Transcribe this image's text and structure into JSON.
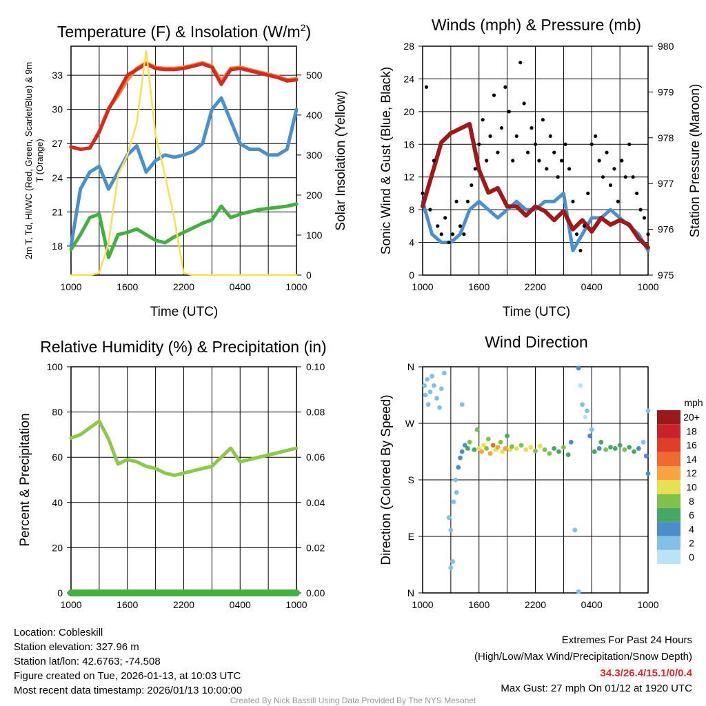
{
  "chart_data": [
    {
      "type": "line",
      "title": "Temperature (F) & Insolation (W/m²)",
      "xlabel": "Time (UTC)",
      "ylabel": "2m T, Td, HI/WC (Red, Green, Scarlet/Blue) & 9m T (Orange)",
      "ylabel_line1": "2m T, Td, HI/WC (Red, Green, Scarlet/Blue)",
      "ylabel_line2": "& 9m T (Orange)",
      "ylabel_right": "Solar Insolation (Yellow)",
      "x_tick_labels": [
        "1000",
        "1600",
        "2200",
        "0400",
        "1000"
      ],
      "y_tick_labels": [
        "18",
        "21",
        "24",
        "27",
        "30",
        "33"
      ],
      "y_right_tick_labels": [
        "0",
        "100",
        "200",
        "300",
        "400",
        "500"
      ],
      "ylim": [
        15.45,
        35.55
      ],
      "ylim_right": [
        0,
        572
      ],
      "x_hours": [
        0,
        1,
        2,
        3,
        4,
        5,
        6,
        7,
        8,
        9,
        10,
        11,
        12,
        13,
        14,
        15,
        16,
        17,
        18,
        19,
        20,
        21,
        22,
        23,
        24
      ],
      "series": [
        {
          "name": "9m T",
          "color": "#f08a30",
          "axis": "left",
          "values": [
            26.7,
            26.5,
            26.6,
            28.1,
            30.1,
            31.2,
            32.6,
            33.6,
            34.1,
            33.7,
            33.6,
            33.6,
            33.7,
            33.9,
            34.1,
            33.8,
            32.5,
            33.6,
            33.7,
            33.5,
            33.3,
            33.1,
            32.9,
            32.6,
            32.7
          ]
        },
        {
          "name": "2m T",
          "color": "#d42a24",
          "axis": "left",
          "values": [
            26.7,
            26.5,
            26.6,
            28,
            30,
            31.5,
            33,
            33.5,
            34,
            33.6,
            33.5,
            33.5,
            33.6,
            33.8,
            34,
            33.7,
            32.2,
            33.5,
            33.6,
            33.4,
            33.2,
            33,
            32.8,
            32.5,
            32.6
          ]
        },
        {
          "name": "Td",
          "color": "#44b040",
          "axis": "left",
          "values": [
            17.7,
            19,
            20.5,
            20.8,
            17,
            19,
            19.2,
            19.5,
            19,
            18.5,
            18.3,
            18.8,
            19.2,
            19.6,
            20,
            20.3,
            21.5,
            20.5,
            20.8,
            21,
            21.2,
            21.3,
            21.4,
            21.5,
            21.7
          ]
        },
        {
          "name": "WC",
          "color": "#4a90cc",
          "axis": "left",
          "values": [
            18,
            23,
            24.5,
            25,
            23,
            24.5,
            26,
            26.8,
            24.5,
            25.5,
            26,
            25.8,
            26,
            26.3,
            27,
            30,
            31,
            29,
            27,
            26.5,
            26.5,
            26,
            26,
            26.5,
            30
          ]
        },
        {
          "name": "Solar",
          "color": "#f8e050",
          "axis": "right",
          "values": [
            0,
            0,
            0,
            5,
            80,
            250,
            300,
            380,
            560,
            350,
            250,
            140,
            5,
            0,
            0,
            0,
            0,
            0,
            0,
            0,
            0,
            0,
            0,
            0,
            0
          ]
        }
      ]
    },
    {
      "type": "line",
      "title": "Winds (mph) & Pressure (mb)",
      "xlabel": "Time (UTC)",
      "ylabel": "Sonic Wind & Gust (Blue, Black)",
      "ylabel_right": "Station Pressure (Maroon)",
      "x_tick_labels": [
        "1000",
        "1600",
        "2200",
        "0400",
        "1000"
      ],
      "y_tick_labels": [
        "0",
        "4",
        "8",
        "12",
        "16",
        "20",
        "24",
        "28"
      ],
      "y_right_tick_labels": [
        "975",
        "976",
        "977",
        "978",
        "979",
        "980"
      ],
      "ylim": [
        0,
        28
      ],
      "ylim_right": [
        975,
        980
      ],
      "x_hours": [
        0,
        1,
        2,
        3,
        4,
        5,
        6,
        7,
        8,
        9,
        10,
        11,
        12,
        13,
        14,
        15,
        16,
        17,
        18,
        19,
        20,
        21,
        22,
        23,
        24
      ],
      "series": [
        {
          "name": "Sonic Wind",
          "color": "#4a90cc",
          "axis": "left",
          "values": [
            9,
            5,
            4,
            4,
            5,
            8,
            9,
            8,
            7,
            8,
            9,
            8,
            8,
            9,
            9,
            10,
            3,
            5,
            7,
            7,
            8,
            7,
            6,
            5,
            3
          ]
        },
        {
          "name": "Pressure",
          "color": "#a01818",
          "axis": "right",
          "values": [
            976.5,
            977.2,
            977.9,
            978.1,
            978.2,
            978.3,
            977.3,
            976.8,
            976.9,
            976.5,
            976.5,
            976.3,
            976.5,
            976.4,
            976.2,
            976.4,
            976.0,
            976.2,
            975.95,
            976.25,
            976.1,
            976.2,
            976.1,
            975.8,
            975.6
          ]
        }
      ],
      "gust": {
        "name": "Gust",
        "color": "#000000",
        "step_hours": 0.4,
        "values": [
          10,
          23,
          8,
          14,
          6,
          5,
          7,
          4,
          5,
          9,
          6,
          5,
          9,
          11,
          13,
          16,
          19,
          14,
          17,
          22,
          15,
          18,
          23,
          20,
          14,
          17,
          26,
          21,
          15,
          18,
          16,
          14,
          19,
          13,
          17,
          15,
          12,
          14,
          16,
          13,
          9,
          5,
          3,
          6,
          10,
          16,
          17,
          14,
          12,
          15,
          11,
          13,
          9,
          14,
          12,
          16,
          12,
          10,
          8,
          7,
          5
        ]
      }
    },
    {
      "type": "line",
      "title": "Relative Humidity (%) & Precipitation (in)",
      "ylabel": "Percent & Precipitation",
      "x_tick_labels": [
        "1000",
        "1600",
        "2200",
        "0400",
        "1000"
      ],
      "y_tick_labels": [
        "0",
        "20",
        "40",
        "60",
        "80",
        "100"
      ],
      "y_right_tick_labels": [
        "0.00",
        "0.02",
        "0.04",
        "0.06",
        "0.08",
        "0.10"
      ],
      "ylim": [
        0,
        100
      ],
      "ylim_right": [
        0,
        0.1
      ],
      "x_hours": [
        0,
        1,
        2,
        3,
        4,
        5,
        6,
        7,
        8,
        9,
        10,
        11,
        12,
        13,
        14,
        15,
        16,
        17,
        18,
        19,
        20,
        21,
        22,
        23,
        24
      ],
      "series": [
        {
          "name": "RH",
          "color": "#8cc84a",
          "axis": "left",
          "values": [
            68.5,
            70,
            73,
            76,
            68,
            57,
            59,
            58,
            56,
            55,
            53,
            52,
            53,
            54,
            55,
            56,
            60,
            64,
            58,
            59,
            60,
            61,
            62,
            63,
            64
          ]
        },
        {
          "name": "Precipitation",
          "color": "#44b040",
          "axis": "right",
          "values": [
            0,
            0,
            0,
            0,
            0,
            0,
            0,
            0,
            0,
            0,
            0,
            0,
            0,
            0,
            0,
            0,
            0,
            0,
            0,
            0,
            0,
            0,
            0,
            0,
            0
          ]
        }
      ]
    },
    {
      "type": "scatter",
      "title": "Wind Direction",
      "ylabel": "Direction (Colored By Speed)",
      "x_tick_labels": [
        "1000",
        "1600",
        "2200",
        "0400",
        "1000"
      ],
      "y_tick_labels": [
        "N",
        "E",
        "S",
        "W",
        "N"
      ],
      "ylim": [
        0,
        360
      ],
      "legend": {
        "title": "mph",
        "labels": [
          "0",
          "2",
          "4",
          "6",
          "8",
          "10",
          "12",
          "14",
          "16",
          "18",
          "20+"
        ],
        "colors": [
          "#b8e4f6",
          "#84bfe6",
          "#4a8ccc",
          "#46a866",
          "#7ec24a",
          "#e6e052",
          "#f6a442",
          "#f06a30",
          "#e03e2a",
          "#c8222a",
          "#9a1a1a"
        ],
        "placement": "right"
      },
      "points": [
        [
          0.2,
          330,
          3
        ],
        [
          0.3,
          315,
          3
        ],
        [
          0.5,
          340,
          2
        ],
        [
          0.6,
          300,
          3
        ],
        [
          0.8,
          320,
          2
        ],
        [
          1,
          345,
          3
        ],
        [
          1.2,
          330,
          2
        ],
        [
          1.5,
          310,
          3
        ],
        [
          1.8,
          295,
          3
        ],
        [
          2,
          325,
          2
        ],
        [
          2.3,
          350,
          2
        ],
        [
          2.8,
          120,
          3
        ],
        [
          3,
          100,
          2
        ],
        [
          3,
          40,
          2
        ],
        [
          3.2,
          50,
          2
        ],
        [
          3.3,
          145,
          3
        ],
        [
          3.5,
          180,
          2
        ],
        [
          3.6,
          160,
          3
        ],
        [
          3.8,
          200,
          4
        ],
        [
          4,
          215,
          4
        ],
        [
          4.2,
          225,
          4
        ],
        [
          4.5,
          235,
          4
        ],
        [
          4.2,
          300,
          2
        ],
        [
          4.8,
          230,
          6
        ],
        [
          5,
          240,
          8
        ],
        [
          5.5,
          228,
          7
        ],
        [
          5.8,
          260,
          8
        ],
        [
          6,
          230,
          10
        ],
        [
          6.3,
          225,
          12
        ],
        [
          6.5,
          235,
          11
        ],
        [
          6.8,
          230,
          9
        ],
        [
          7,
          245,
          8
        ],
        [
          7.2,
          222,
          12
        ],
        [
          7.5,
          235,
          14
        ],
        [
          7.8,
          228,
          10
        ],
        [
          8,
          232,
          13
        ],
        [
          8.3,
          240,
          8
        ],
        [
          8.5,
          225,
          11
        ],
        [
          8.8,
          230,
          12
        ],
        [
          9,
          250,
          6
        ],
        [
          9.3,
          228,
          10
        ],
        [
          9.5,
          233,
          9
        ],
        [
          10,
          230,
          10
        ],
        [
          10.5,
          235,
          9
        ],
        [
          11,
          228,
          11
        ],
        [
          11.5,
          232,
          10
        ],
        [
          12,
          226,
          8
        ],
        [
          12.5,
          234,
          10
        ],
        [
          13,
          228,
          9
        ],
        [
          13.5,
          222,
          8
        ],
        [
          14,
          230,
          7
        ],
        [
          14.5,
          225,
          6
        ],
        [
          15,
          232,
          9
        ],
        [
          15.5,
          220,
          6
        ],
        [
          15.8,
          240,
          4
        ],
        [
          16.2,
          100,
          3
        ],
        [
          16.6,
          358,
          4
        ],
        [
          16.8,
          330,
          1
        ],
        [
          17,
          300,
          2
        ],
        [
          17.3,
          280,
          1
        ],
        [
          17.5,
          290,
          2
        ],
        [
          16.6,
          2,
          2
        ],
        [
          17.8,
          250,
          4
        ],
        [
          18,
          260,
          3
        ],
        [
          18.3,
          225,
          6
        ],
        [
          18.8,
          230,
          5
        ],
        [
          19,
          240,
          6
        ],
        [
          19.5,
          228,
          8
        ],
        [
          20,
          232,
          7
        ],
        [
          20.5,
          230,
          6
        ],
        [
          21,
          235,
          6
        ],
        [
          21.5,
          228,
          8
        ],
        [
          22,
          232,
          6
        ],
        [
          22.5,
          225,
          7
        ],
        [
          23,
          230,
          5
        ],
        [
          23.5,
          240,
          2
        ],
        [
          23.8,
          218,
          4
        ],
        [
          24,
          290,
          3
        ],
        [
          24,
          190,
          4
        ]
      ]
    }
  ],
  "footer": {
    "location": "Location: Cobleskill",
    "elevation": "Station elevation: 327.96 m",
    "latlon": "Station lat/lon: 42.6763; -74.508",
    "created": "Figure created on Tue, 2026-01-13, at 10:03 UTC",
    "timestamp": "Most recent data timestamp: 2026/01/13 10:00:00",
    "extremes_title": "Extremes For Past 24 Hours",
    "extremes_desc": "(High/Low/Max Wind/Precipitation/Snow Depth)",
    "extremes_values": "34.3/26.4/15.1/0/0.4",
    "max_gust": "Max Gust: 27 mph On 01/12 at 1920 UTC",
    "credit": "Created By Nick Bassill Using Data Provided By The NYS Mesonet"
  }
}
